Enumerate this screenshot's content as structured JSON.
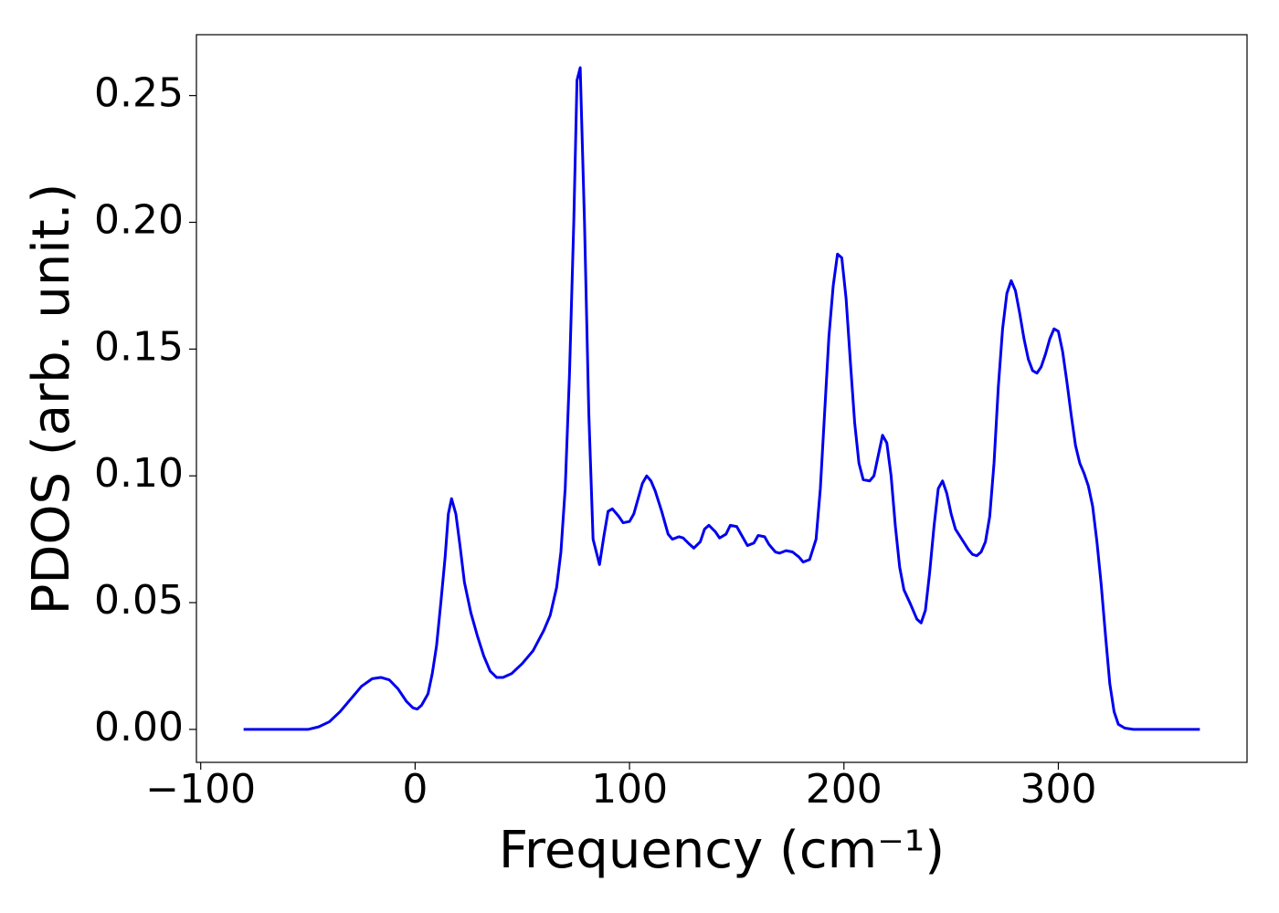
{
  "chart_data": {
    "type": "line",
    "xlabel": "Frequency (cm⁻¹)",
    "ylabel": "PDOS (arb. unit.)",
    "xlim": [
      -102,
      388
    ],
    "ylim": [
      -0.013,
      0.274
    ],
    "xticks": [
      {
        "value": -100,
        "label": "−100"
      },
      0,
      100,
      200,
      300
    ],
    "yticks": [
      {
        "value": 0,
        "label": "0.00"
      },
      {
        "value": 0.05,
        "label": "0.05"
      },
      {
        "value": 0.1,
        "label": "0.10"
      },
      {
        "value": 0.15,
        "label": "0.15"
      },
      {
        "value": 0.2,
        "label": "0.20"
      },
      {
        "value": 0.25,
        "label": "0.25"
      }
    ],
    "grid": false,
    "series": [
      {
        "color": "#0000ee",
        "x": [
          -80,
          -50,
          -45,
          -40,
          -35,
          -30,
          -25,
          -20,
          -16,
          -12,
          -8,
          -4,
          -1,
          1,
          3,
          6,
          8,
          10,
          12,
          14,
          15.5,
          17,
          19,
          21,
          23,
          26,
          29,
          32,
          35,
          38,
          41,
          45,
          50,
          55,
          60,
          63,
          66,
          68,
          70,
          72,
          74,
          75.5,
          77,
          79,
          81,
          83,
          86,
          88,
          90,
          92,
          95,
          97,
          100,
          102,
          106,
          108,
          110,
          112,
          115,
          118,
          120,
          123,
          125,
          128,
          130,
          133,
          135,
          137,
          140,
          142,
          145,
          147,
          150,
          153,
          155,
          158,
          160,
          163,
          165,
          168,
          170,
          173,
          176,
          179,
          181,
          184,
          187,
          189,
          191,
          193,
          195,
          197,
          199,
          201,
          203,
          205,
          207,
          209,
          212,
          214,
          216,
          218,
          220,
          222,
          224,
          226,
          228,
          231,
          234,
          236,
          238,
          240,
          242,
          244,
          246,
          248,
          250,
          252,
          255,
          258,
          260,
          262,
          264,
          266,
          268,
          270,
          272,
          274,
          276,
          278,
          280,
          282,
          284,
          286,
          288,
          290,
          292,
          294,
          296,
          298,
          300,
          302,
          304,
          306,
          308,
          310,
          312,
          314,
          316,
          318,
          320,
          322,
          324,
          326,
          328,
          331,
          335,
          366
        ],
        "values": [
          0,
          0,
          0.001,
          0.003,
          0.007,
          0.012,
          0.017,
          0.02,
          0.0205,
          0.0195,
          0.016,
          0.011,
          0.0085,
          0.008,
          0.0095,
          0.014,
          0.022,
          0.033,
          0.05,
          0.068,
          0.085,
          0.091,
          0.085,
          0.072,
          0.058,
          0.046,
          0.037,
          0.029,
          0.023,
          0.0205,
          0.0205,
          0.022,
          0.026,
          0.031,
          0.039,
          0.045,
          0.056,
          0.07,
          0.095,
          0.14,
          0.2,
          0.256,
          0.261,
          0.2,
          0.125,
          0.075,
          0.065,
          0.076,
          0.086,
          0.087,
          0.084,
          0.0815,
          0.082,
          0.085,
          0.097,
          0.1,
          0.098,
          0.094,
          0.086,
          0.077,
          0.075,
          0.076,
          0.0755,
          0.073,
          0.0715,
          0.074,
          0.079,
          0.0805,
          0.078,
          0.0755,
          0.077,
          0.0805,
          0.08,
          0.0755,
          0.0725,
          0.0735,
          0.0765,
          0.076,
          0.073,
          0.07,
          0.0695,
          0.0705,
          0.07,
          0.068,
          0.066,
          0.067,
          0.075,
          0.095,
          0.125,
          0.155,
          0.175,
          0.1875,
          0.186,
          0.17,
          0.145,
          0.121,
          0.105,
          0.0985,
          0.098,
          0.1,
          0.108,
          0.116,
          0.113,
          0.1,
          0.08,
          0.064,
          0.055,
          0.0495,
          0.0435,
          0.042,
          0.047,
          0.062,
          0.08,
          0.095,
          0.098,
          0.093,
          0.085,
          0.079,
          0.075,
          0.071,
          0.069,
          0.0685,
          0.07,
          0.074,
          0.084,
          0.105,
          0.135,
          0.158,
          0.172,
          0.177,
          0.173,
          0.164,
          0.154,
          0.146,
          0.1415,
          0.1405,
          0.143,
          0.148,
          0.154,
          0.158,
          0.157,
          0.149,
          0.137,
          0.124,
          0.112,
          0.105,
          0.101,
          0.096,
          0.088,
          0.074,
          0.057,
          0.037,
          0.018,
          0.007,
          0.002,
          0.0005,
          0,
          0
        ]
      }
    ]
  }
}
